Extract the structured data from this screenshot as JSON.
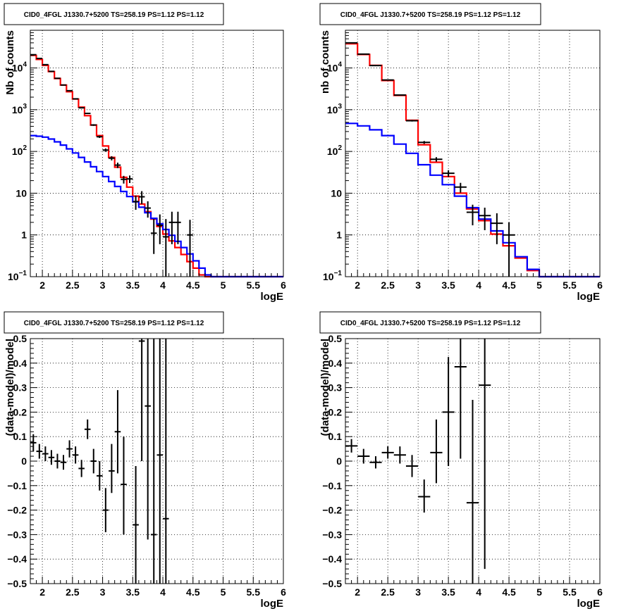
{
  "chart_data": [
    {
      "type": "step-histogram",
      "title": "CID0_4FGL J1330.7+5200 TS=258.19 PS=1.12 PS=1.12",
      "xlabel": "logE",
      "ylabel": "Nb of counts",
      "xlim": [
        1.8,
        6.0
      ],
      "ylim": [
        0.1,
        80000
      ],
      "yscale": "log",
      "grid": true,
      "x_ticks": [
        "2",
        "2.5",
        "3",
        "3.5",
        "4",
        "4.5",
        "5",
        "5.5",
        "6"
      ],
      "y_ticks": [
        {
          "v": 0.1,
          "base": "10",
          "exp": "−1"
        },
        {
          "v": 1,
          "base": "1",
          "exp": ""
        },
        {
          "v": 10,
          "base": "10",
          "exp": ""
        },
        {
          "v": 100,
          "base": "10",
          "exp": "2"
        },
        {
          "v": 1000,
          "base": "10",
          "exp": "3"
        },
        {
          "v": 10000,
          "base": "10",
          "exp": "4"
        }
      ],
      "bin_edges": [
        1.8,
        1.9,
        2.0,
        2.1,
        2.2,
        2.3,
        2.4,
        2.5,
        2.6,
        2.7,
        2.8,
        2.9,
        3.0,
        3.1,
        3.2,
        3.3,
        3.4,
        3.5,
        3.6,
        3.7,
        3.8,
        3.9,
        4.0,
        4.1,
        4.2,
        4.3,
        4.4,
        4.5,
        4.6,
        4.7,
        4.8,
        4.9,
        5.0,
        5.1,
        5.2,
        5.3,
        5.4,
        5.5,
        5.6,
        5.7,
        5.8,
        5.9,
        6.0
      ],
      "series": [
        {
          "color": "#ff0000",
          "values": [
            20000,
            16000,
            11500,
            8200,
            5600,
            3900,
            2700,
            1800,
            1150,
            720,
            430,
            240,
            135,
            72,
            42,
            24,
            14,
            8.5,
            5.5,
            3.6,
            2.4,
            1.6,
            1.05,
            0.72,
            0.5,
            0.34,
            0.23,
            0.16,
            0.11,
            0.1,
            0.1,
            0.1,
            0.1,
            0.1,
            0.1,
            0.1,
            0.1,
            0.1,
            0.1,
            0.1,
            0.1,
            0.1
          ]
        },
        {
          "color": "#0000ff",
          "values": [
            240,
            232,
            220,
            198,
            170,
            142,
            115,
            92,
            72,
            56,
            43,
            33,
            25,
            19,
            14.5,
            11,
            8.3,
            6.2,
            4.6,
            3.4,
            2.5,
            1.85,
            1.35,
            0.98,
            0.7,
            0.5,
            0.35,
            0.24,
            0.16,
            0.11,
            0.1,
            0.1,
            0.1,
            0.1,
            0.1,
            0.1,
            0.1,
            0.1,
            0.1,
            0.1,
            0.1,
            0.1
          ]
        }
      ],
      "points": [
        {
          "x": 1.85,
          "xerr": 0.05,
          "y": 20800,
          "ylo": 20650,
          "yhi": 20950
        },
        {
          "x": 1.95,
          "xerr": 0.05,
          "y": 16900,
          "ylo": 16750,
          "yhi": 17050
        },
        {
          "x": 2.05,
          "xerr": 0.05,
          "y": 12000,
          "ylo": 11880,
          "yhi": 12120
        },
        {
          "x": 2.15,
          "xerr": 0.05,
          "y": 8300,
          "ylo": 8200,
          "yhi": 8400
        },
        {
          "x": 2.25,
          "xerr": 0.05,
          "y": 5650,
          "ylo": 5570,
          "yhi": 5730
        },
        {
          "x": 2.35,
          "xerr": 0.05,
          "y": 3900,
          "ylo": 3840,
          "yhi": 3960
        },
        {
          "x": 2.45,
          "xerr": 0.05,
          "y": 2850,
          "ylo": 2800,
          "yhi": 2900
        },
        {
          "x": 2.55,
          "xerr": 0.05,
          "y": 1820,
          "ylo": 1780,
          "yhi": 1860
        },
        {
          "x": 2.65,
          "xerr": 0.05,
          "y": 1110,
          "ylo": 1080,
          "yhi": 1140
        },
        {
          "x": 2.75,
          "xerr": 0.05,
          "y": 815,
          "ylo": 790,
          "yhi": 840
        },
        {
          "x": 2.85,
          "xerr": 0.05,
          "y": 430,
          "ylo": 410,
          "yhi": 450
        },
        {
          "x": 2.95,
          "xerr": 0.05,
          "y": 225,
          "ylo": 210,
          "yhi": 240
        },
        {
          "x": 3.05,
          "xerr": 0.05,
          "y": 108,
          "ylo": 98,
          "yhi": 118
        },
        {
          "x": 3.15,
          "xerr": 0.05,
          "y": 69,
          "ylo": 61,
          "yhi": 77
        },
        {
          "x": 3.25,
          "xerr": 0.05,
          "y": 47,
          "ylo": 40,
          "yhi": 54
        },
        {
          "x": 3.35,
          "xerr": 0.05,
          "y": 21.5,
          "ylo": 17,
          "yhi": 26
        },
        {
          "x": 3.45,
          "xerr": 0.05,
          "y": 22,
          "ylo": 17.5,
          "yhi": 26.5
        },
        {
          "x": 3.55,
          "xerr": 0.05,
          "y": 6.3,
          "ylo": 4,
          "yhi": 8.8
        },
        {
          "x": 3.65,
          "xerr": 0.05,
          "y": 8.2,
          "ylo": 5.5,
          "yhi": 11.2
        },
        {
          "x": 3.75,
          "xerr": 0.05,
          "y": 4.4,
          "ylo": 2.6,
          "yhi": 6.4
        },
        {
          "x": 3.85,
          "xerr": 0.05,
          "y": 1.1,
          "ylo": 0.35,
          "yhi": 2.4
        },
        {
          "x": 3.95,
          "xerr": 0.05,
          "y": 1.7,
          "ylo": 0.6,
          "yhi": 3.1
        },
        {
          "x": 4.05,
          "xerr": 0.05,
          "y": 0.9,
          "ylo": 0.1,
          "yhi": 2.4
        },
        {
          "x": 4.15,
          "xerr": 0.05,
          "y": 2.0,
          "ylo": 0.6,
          "yhi": 3.6
        },
        {
          "x": 4.25,
          "xerr": 0.05,
          "y": 2.0,
          "ylo": 0.6,
          "yhi": 3.6
        },
        {
          "x": 4.45,
          "xerr": 0.05,
          "y": 1.0,
          "ylo": 0.1,
          "yhi": 2.3
        }
      ]
    },
    {
      "type": "step-histogram",
      "title": "CID0_4FGL J1330.7+5200 TS=258.19 PS=1.12 PS=1.12",
      "xlabel": "logE",
      "ylabel": "nb of counts",
      "xlim": [
        1.8,
        6.0
      ],
      "ylim": [
        0.1,
        80000
      ],
      "yscale": "log",
      "grid": true,
      "x_ticks": [
        "2",
        "2.5",
        "3",
        "3.5",
        "4",
        "4.5",
        "5",
        "5.5",
        "6"
      ],
      "y_ticks": [
        {
          "v": 0.1,
          "base": "10",
          "exp": "−1"
        },
        {
          "v": 1,
          "base": "1",
          "exp": ""
        },
        {
          "v": 10,
          "base": "10",
          "exp": ""
        },
        {
          "v": 100,
          "base": "10",
          "exp": "2"
        },
        {
          "v": 1000,
          "base": "10",
          "exp": "3"
        },
        {
          "v": 10000,
          "base": "10",
          "exp": "4"
        }
      ],
      "bin_edges": [
        1.8,
        2.0,
        2.2,
        2.4,
        2.6,
        2.8,
        3.0,
        3.2,
        3.4,
        3.6,
        3.8,
        4.0,
        4.2,
        4.4,
        4.6,
        4.8,
        5.0,
        5.2,
        5.4,
        5.6,
        5.8,
        6.0
      ],
      "series": [
        {
          "color": "#ff0000",
          "values": [
            38000,
            21000,
            11500,
            5000,
            2200,
            560,
            145,
            55,
            25,
            10,
            4.2,
            2.2,
            1.05,
            0.55,
            0.28,
            0.14,
            0.1,
            0.1,
            0.1,
            0.1,
            0.1
          ]
        },
        {
          "color": "#0000ff",
          "values": [
            470,
            410,
            330,
            240,
            150,
            90,
            48,
            27,
            16,
            8.5,
            4.5,
            2.4,
            1.25,
            0.65,
            0.3,
            0.15,
            0.1,
            0.1,
            0.1,
            0.1,
            0.1
          ]
        }
      ],
      "points": [
        {
          "x": 1.9,
          "xerr": 0.1,
          "y": 40000,
          "ylo": 39800,
          "yhi": 40200
        },
        {
          "x": 2.1,
          "xerr": 0.1,
          "y": 21500,
          "ylo": 21350,
          "yhi": 21650
        },
        {
          "x": 2.3,
          "xerr": 0.1,
          "y": 11400,
          "ylo": 11300,
          "yhi": 11500
        },
        {
          "x": 2.5,
          "xerr": 0.1,
          "y": 5150,
          "ylo": 5080,
          "yhi": 5220
        },
        {
          "x": 2.7,
          "xerr": 0.1,
          "y": 2250,
          "ylo": 2200,
          "yhi": 2300
        },
        {
          "x": 2.9,
          "xerr": 0.1,
          "y": 545,
          "ylo": 520,
          "yhi": 570
        },
        {
          "x": 3.1,
          "xerr": 0.1,
          "y": 165,
          "ylo": 152,
          "yhi": 178
        },
        {
          "x": 3.3,
          "xerr": 0.1,
          "y": 65,
          "ylo": 57,
          "yhi": 73
        },
        {
          "x": 3.5,
          "xerr": 0.1,
          "y": 30,
          "ylo": 24.5,
          "yhi": 35.5
        },
        {
          "x": 3.7,
          "xerr": 0.1,
          "y": 14,
          "ylo": 10.3,
          "yhi": 17.7
        },
        {
          "x": 3.9,
          "xerr": 0.1,
          "y": 3.5,
          "ylo": 1.7,
          "yhi": 5.3
        },
        {
          "x": 4.1,
          "xerr": 0.1,
          "y": 2.9,
          "ylo": 1.3,
          "yhi": 4.5
        },
        {
          "x": 4.3,
          "xerr": 0.1,
          "y": 1.9,
          "ylo": 0.6,
          "yhi": 3.3
        },
        {
          "x": 4.5,
          "xerr": 0.1,
          "y": 1.0,
          "ylo": 0.1,
          "yhi": 2.0
        }
      ]
    },
    {
      "type": "scatter",
      "title": "CID0_4FGL J1330.7+5200 TS=258.19 PS=1.12 PS=1.12",
      "xlabel": "logE",
      "ylabel": "(data-model)/model",
      "xlim": [
        1.8,
        6.0
      ],
      "ylim": [
        -0.5,
        0.5
      ],
      "yscale": "linear",
      "grid": true,
      "x_ticks": [
        "2",
        "2.5",
        "3",
        "3.5",
        "4",
        "4.5",
        "5",
        "5.5",
        "6"
      ],
      "y_ticks": [
        "−0.5",
        "−0.4",
        "−0.3",
        "−0.2",
        "−0.1",
        "0",
        "0.1",
        "0.2",
        "0.3",
        "0.4",
        "0.5"
      ],
      "points": [
        {
          "x": 1.85,
          "xerr": 0.05,
          "y": 0.075,
          "ylo": 0.04,
          "yhi": 0.11
        },
        {
          "x": 1.95,
          "xerr": 0.05,
          "y": 0.04,
          "ylo": 0.01,
          "yhi": 0.07
        },
        {
          "x": 2.05,
          "xerr": 0.05,
          "y": 0.03,
          "ylo": 0.0,
          "yhi": 0.06
        },
        {
          "x": 2.15,
          "xerr": 0.05,
          "y": 0.015,
          "ylo": -0.015,
          "yhi": 0.045
        },
        {
          "x": 2.25,
          "xerr": 0.05,
          "y": 0.0,
          "ylo": -0.03,
          "yhi": 0.03
        },
        {
          "x": 2.35,
          "xerr": 0.05,
          "y": -0.005,
          "ylo": -0.035,
          "yhi": 0.025
        },
        {
          "x": 2.45,
          "xerr": 0.05,
          "y": 0.05,
          "ylo": 0.015,
          "yhi": 0.085
        },
        {
          "x": 2.55,
          "xerr": 0.05,
          "y": 0.025,
          "ylo": -0.01,
          "yhi": 0.06
        },
        {
          "x": 2.65,
          "xerr": 0.05,
          "y": -0.03,
          "ylo": -0.065,
          "yhi": 0.005
        },
        {
          "x": 2.75,
          "xerr": 0.05,
          "y": 0.13,
          "ylo": 0.09,
          "yhi": 0.17
        },
        {
          "x": 2.85,
          "xerr": 0.05,
          "y": 0.0,
          "ylo": -0.05,
          "yhi": 0.05
        },
        {
          "x": 2.95,
          "xerr": 0.05,
          "y": -0.06,
          "ylo": -0.12,
          "yhi": 0.0
        },
        {
          "x": 3.05,
          "xerr": 0.05,
          "y": -0.2,
          "ylo": -0.29,
          "yhi": -0.11
        },
        {
          "x": 3.15,
          "xerr": 0.05,
          "y": -0.04,
          "ylo": -0.13,
          "yhi": 0.07
        },
        {
          "x": 3.25,
          "xerr": 0.05,
          "y": 0.12,
          "ylo": -0.05,
          "yhi": 0.29
        },
        {
          "x": 3.35,
          "xerr": 0.05,
          "y": -0.095,
          "ylo": -0.3,
          "yhi": 0.1
        },
        {
          "x": 3.55,
          "xerr": 0.05,
          "y": -0.26,
          "ylo": -0.5,
          "yhi": -0.02
        },
        {
          "x": 3.65,
          "xerr": 0.05,
          "y": 0.49,
          "ylo": 0.0,
          "yhi": 0.5
        },
        {
          "x": 3.75,
          "xerr": 0.05,
          "y": 0.225,
          "ylo": -0.32,
          "yhi": 0.5
        },
        {
          "x": 3.85,
          "xerr": 0.05,
          "y": -0.3,
          "ylo": -0.5,
          "yhi": 0.5
        },
        {
          "x": 3.95,
          "xerr": 0.05,
          "y": 0.025,
          "ylo": -0.5,
          "yhi": 0.5
        },
        {
          "x": 4.05,
          "xerr": 0.05,
          "y": -0.235,
          "ylo": -0.5,
          "yhi": 0.5
        }
      ]
    },
    {
      "type": "scatter",
      "title": "CID0_4FGL J1330.7+5200 TS=258.19 PS=1.12 PS=1.12",
      "xlabel": "logE",
      "ylabel": "(data-model)/model",
      "xlim": [
        1.8,
        6.0
      ],
      "ylim": [
        -0.5,
        0.5
      ],
      "yscale": "linear",
      "grid": true,
      "x_ticks": [
        "2",
        "2.5",
        "3",
        "3.5",
        "4",
        "4.5",
        "5",
        "5.5",
        "6"
      ],
      "y_ticks": [
        "−0.5",
        "−0.4",
        "−0.3",
        "−0.2",
        "−0.1",
        "0",
        "0.1",
        "0.2",
        "0.3",
        "0.4",
        "0.5"
      ],
      "points": [
        {
          "x": 1.9,
          "xerr": 0.1,
          "y": 0.062,
          "ylo": 0.035,
          "yhi": 0.09
        },
        {
          "x": 2.1,
          "xerr": 0.1,
          "y": 0.02,
          "ylo": -0.01,
          "yhi": 0.05
        },
        {
          "x": 2.3,
          "xerr": 0.1,
          "y": -0.005,
          "ylo": -0.03,
          "yhi": 0.02
        },
        {
          "x": 2.5,
          "xerr": 0.1,
          "y": 0.035,
          "ylo": 0.01,
          "yhi": 0.06
        },
        {
          "x": 2.7,
          "xerr": 0.1,
          "y": 0.025,
          "ylo": -0.01,
          "yhi": 0.06
        },
        {
          "x": 2.9,
          "xerr": 0.1,
          "y": -0.02,
          "ylo": -0.065,
          "yhi": 0.025
        },
        {
          "x": 3.1,
          "xerr": 0.1,
          "y": -0.145,
          "ylo": -0.21,
          "yhi": -0.075
        },
        {
          "x": 3.3,
          "xerr": 0.1,
          "y": 0.035,
          "ylo": -0.09,
          "yhi": 0.17
        },
        {
          "x": 3.5,
          "xerr": 0.1,
          "y": 0.2,
          "ylo": -0.02,
          "yhi": 0.425
        },
        {
          "x": 3.7,
          "xerr": 0.1,
          "y": 0.385,
          "ylo": 0.01,
          "yhi": 0.5
        },
        {
          "x": 3.9,
          "xerr": 0.1,
          "y": -0.17,
          "ylo": -0.5,
          "yhi": 0.25
        },
        {
          "x": 4.1,
          "xerr": 0.1,
          "y": 0.31,
          "ylo": -0.44,
          "yhi": 0.5
        }
      ]
    }
  ]
}
